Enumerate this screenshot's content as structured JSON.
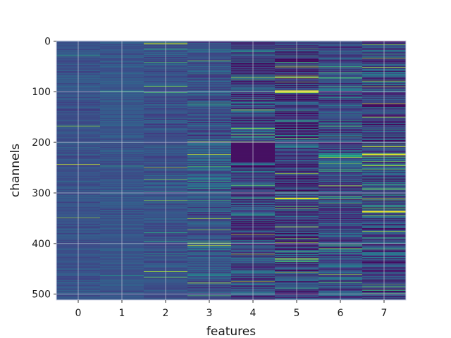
{
  "chart_data": {
    "type": "heatmap",
    "title": "",
    "xlabel": "features",
    "ylabel": "channels",
    "x_categories": [
      "0",
      "1",
      "2",
      "3",
      "4",
      "5",
      "6",
      "7"
    ],
    "y_range": [
      0,
      512
    ],
    "y_ticks": [
      0,
      100,
      200,
      300,
      400,
      500
    ],
    "y_inverted": true,
    "grid": true,
    "colormap": "viridis",
    "value_range": [
      0,
      1
    ],
    "background_color": "#3e4a89",
    "columns": [
      {
        "feature": "0",
        "baseline": 0.26,
        "spread": 0.07,
        "spike_rate": 0.01
      },
      {
        "feature": "1",
        "baseline": 0.27,
        "spread": 0.07,
        "spike_rate": 0.01
      },
      {
        "feature": "2",
        "baseline": 0.26,
        "spread": 0.09,
        "spike_rate": 0.02
      },
      {
        "feature": "3",
        "baseline": 0.27,
        "spread": 0.14,
        "spike_rate": 0.04
      },
      {
        "feature": "4",
        "baseline": 0.22,
        "spread": 0.22,
        "spike_rate": 0.06
      },
      {
        "feature": "5",
        "baseline": 0.18,
        "spread": 0.22,
        "spike_rate": 0.07
      },
      {
        "feature": "6",
        "baseline": 0.24,
        "spread": 0.2,
        "spike_rate": 0.06
      },
      {
        "feature": "7",
        "baseline": 0.22,
        "spread": 0.22,
        "spike_rate": 0.08
      }
    ],
    "notable_bands": [
      {
        "feature": "4",
        "channel_start": 200,
        "channel_end": 240,
        "value": 0.06
      },
      {
        "feature": "5",
        "channel_start": 98,
        "channel_end": 102,
        "value": 0.98
      },
      {
        "feature": "5",
        "channel_start": 310,
        "channel_end": 313,
        "value": 0.96
      },
      {
        "feature": "6",
        "channel_start": 225,
        "channel_end": 229,
        "value": 0.62
      },
      {
        "feature": "7",
        "channel_start": 223,
        "channel_end": 226,
        "value": 0.95
      },
      {
        "feature": "7",
        "channel_start": 336,
        "channel_end": 339,
        "value": 0.97
      }
    ]
  }
}
